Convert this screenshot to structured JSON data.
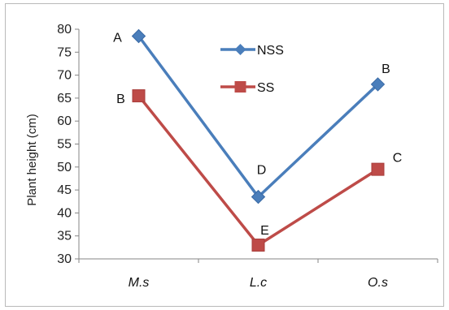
{
  "chart_data": {
    "type": "line",
    "title": "",
    "xlabel": "",
    "ylabel": "Plant height (cm)",
    "categories": [
      "M.s",
      "L.c",
      "O.s"
    ],
    "ylim": [
      30,
      80
    ],
    "yticks": [
      30,
      35,
      40,
      45,
      50,
      55,
      60,
      65,
      70,
      75,
      80
    ],
    "grid": false,
    "legend_position": "inside-top-center",
    "series": [
      {
        "name": "NSS",
        "color": "#4a7ebb",
        "marker": "diamond",
        "values": [
          78.5,
          43.5,
          68
        ],
        "labels": [
          "A",
          "D",
          "B"
        ]
      },
      {
        "name": "SS",
        "color": "#be4b48",
        "marker": "square",
        "values": [
          65.5,
          33,
          49.5
        ],
        "labels": [
          "B",
          "E",
          "C"
        ]
      }
    ]
  }
}
